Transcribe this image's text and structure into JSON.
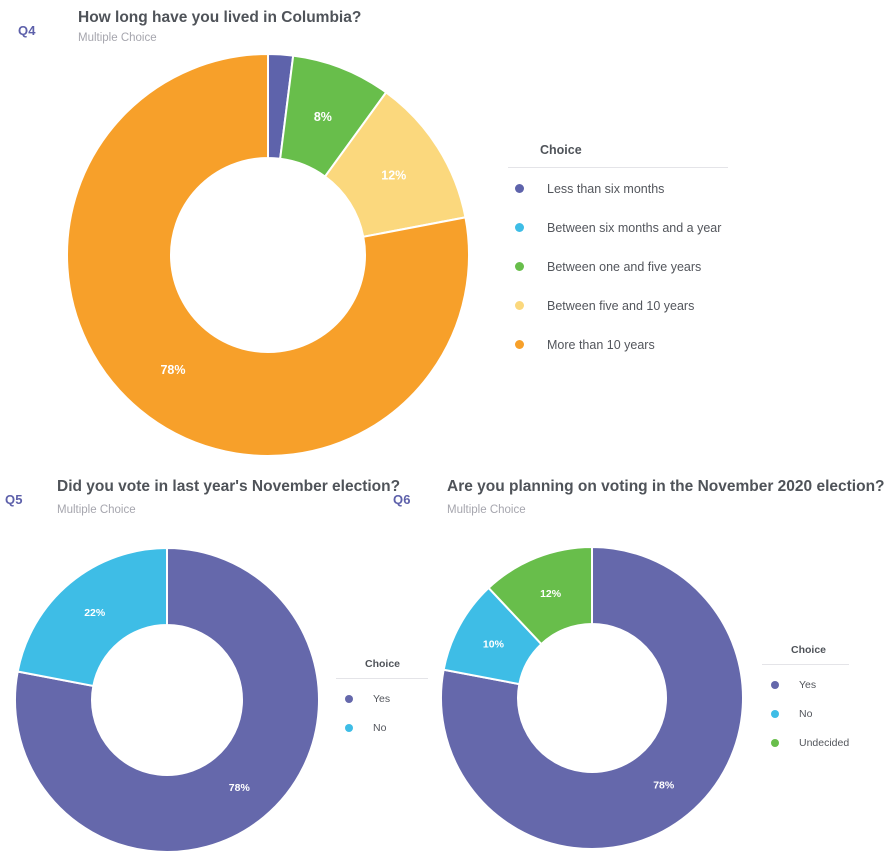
{
  "page": {
    "background": "#ffffff"
  },
  "colors": {
    "purple": "#6568ab",
    "purple_dark": "#5e63ab",
    "blue": "#3ebde6",
    "green": "#68be4b",
    "yellow": "#fbd87d",
    "orange": "#f7a02a",
    "title_text": "#4f5359",
    "muted_text": "#a6a6ae",
    "q_label_text": "#5d60aa",
    "divider": "#e4e4e8"
  },
  "chart_data": [
    {
      "type": "pie",
      "donut": true,
      "question_number": "Q4",
      "title": "How long have you lived in Columbia?",
      "subtitle": "Multiple Choice",
      "legend_title": "Choice",
      "legend_position": "right",
      "categories": [
        "Less than six months",
        "Between six months and a year",
        "Between one and five years",
        "Between five and 10 years",
        "More than 10 years"
      ],
      "values": [
        2,
        0,
        8,
        12,
        78
      ],
      "colors": [
        "#5e63ab",
        "#3ebde6",
        "#68be4b",
        "#fbd87d",
        "#f7a02a"
      ],
      "labels": [
        null,
        null,
        "8%",
        "12%",
        "78%"
      ]
    },
    {
      "type": "pie",
      "donut": true,
      "question_number": "Q5",
      "title": "Did you vote in last year's November election?",
      "subtitle": "Multiple Choice",
      "legend_title": "Choice",
      "legend_position": "right",
      "categories": [
        "Yes",
        "No"
      ],
      "values": [
        78,
        22
      ],
      "colors": [
        "#6568ab",
        "#3ebde6"
      ],
      "labels": [
        "78%",
        "22%"
      ]
    },
    {
      "type": "pie",
      "donut": true,
      "question_number": "Q6",
      "title": "Are you planning on voting in the November 2020 election?",
      "subtitle": "Multiple Choice",
      "legend_title": "Choice",
      "legend_position": "right",
      "categories": [
        "Yes",
        "No",
        "Undecided"
      ],
      "values": [
        78,
        10,
        12
      ],
      "colors": [
        "#6568ab",
        "#3ebde6",
        "#68be4b"
      ],
      "labels": [
        "78%",
        "10%",
        "12%"
      ]
    }
  ]
}
